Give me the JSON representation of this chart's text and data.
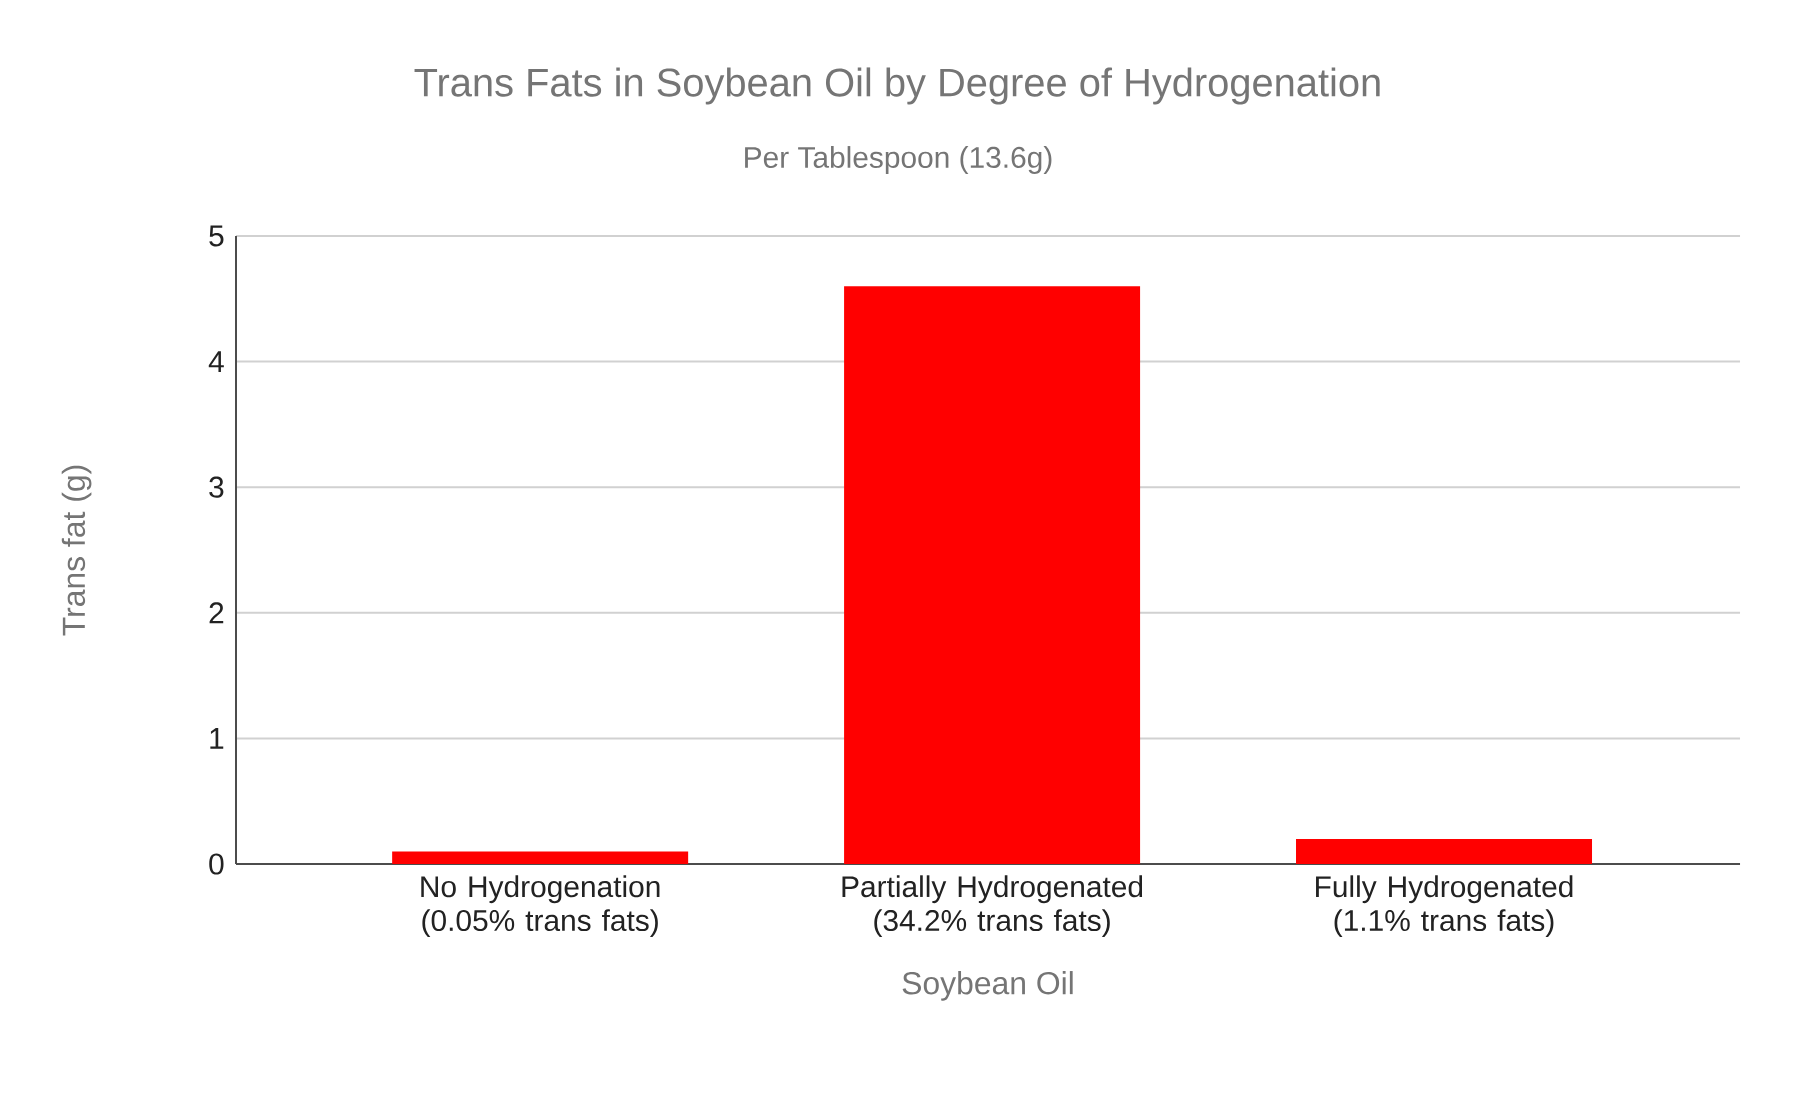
{
  "chart_data": {
    "type": "bar",
    "title": "Trans Fats in Soybean Oil by Degree of Hydrogenation",
    "subtitle": "Per Tablespoon (13.6g)",
    "xlabel": "Soybean Oil",
    "ylabel": "Trans fat (g)",
    "categories": [
      "No Hydrogenation (0.05% trans fats)",
      "Partially Hydrogenated (34.2% trans fats)",
      "Fully Hydrogenated (1.1% trans fats)"
    ],
    "values": [
      0.1,
      4.6,
      0.2
    ],
    "color": "#ff0000",
    "ylim": [
      0,
      5
    ],
    "yticks": [
      0,
      1,
      2,
      3,
      4,
      5
    ],
    "grid": "y"
  }
}
